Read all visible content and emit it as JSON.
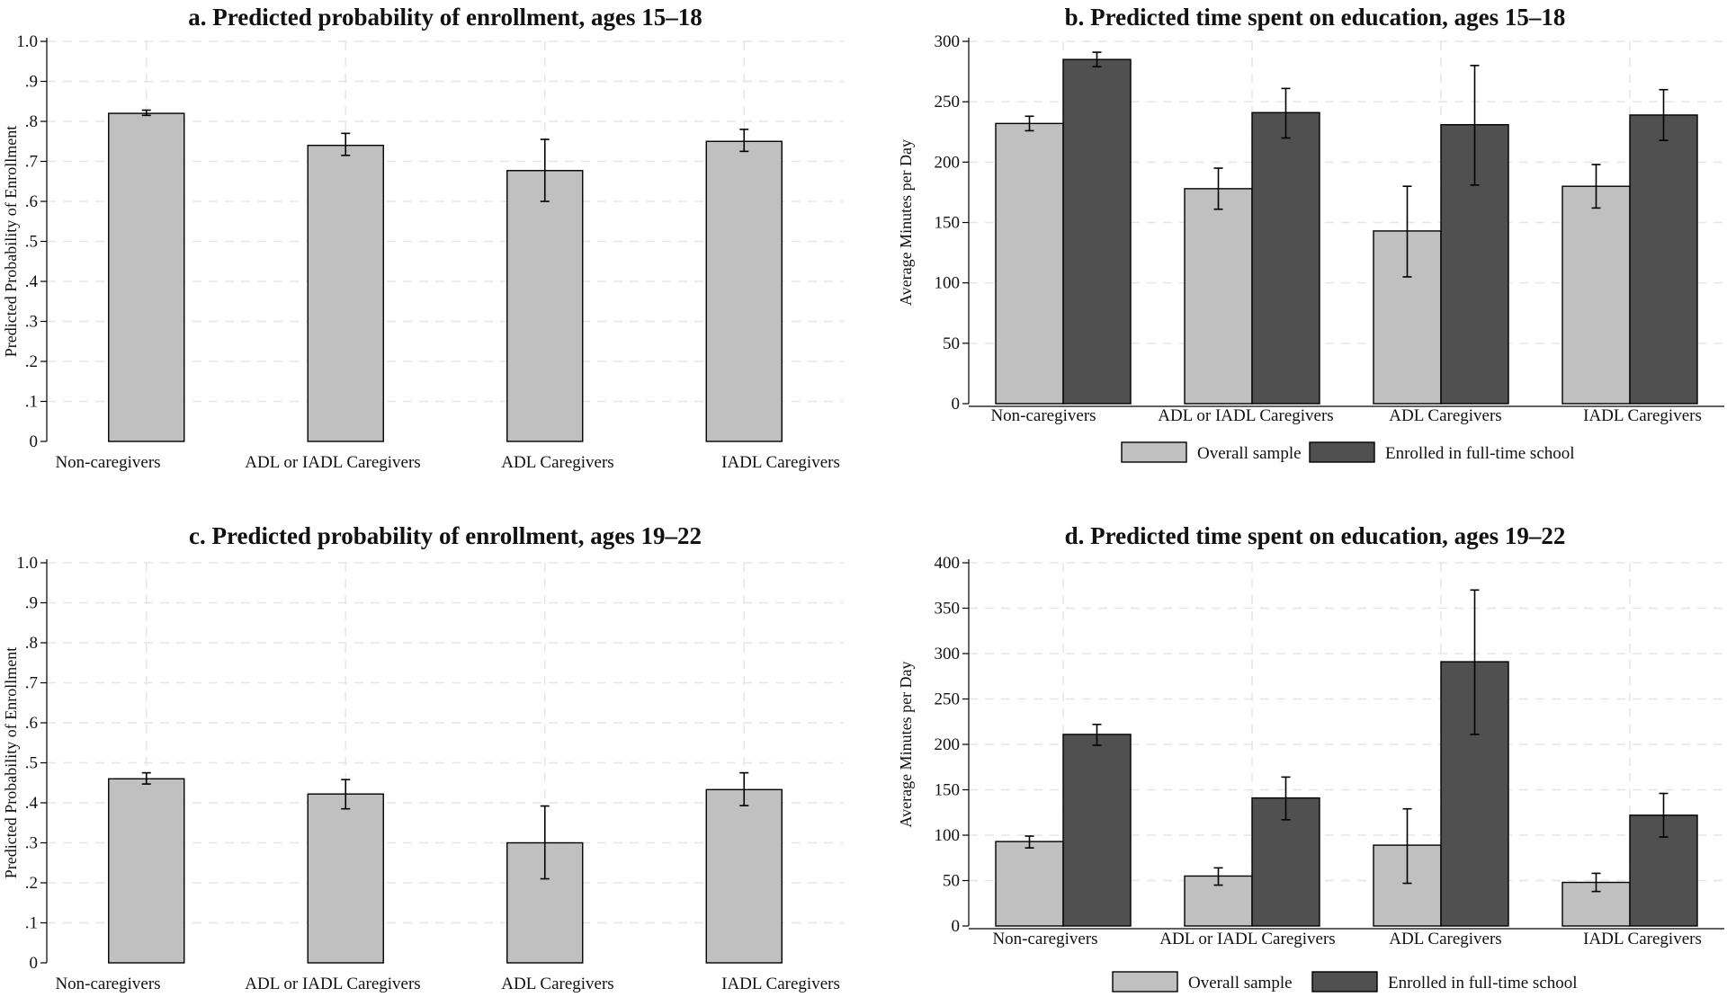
{
  "colors": {
    "light_bar": "#c0c0c0",
    "dark_bar": "#505050",
    "grid": "#e6e6e6",
    "axis": "#000000",
    "error": "#000000"
  },
  "chart_data": [
    {
      "id": "a",
      "type": "bar",
      "title": "a. Predicted probability of enrollment, ages 15–18",
      "ylabel": "Predicted Probability of Enrollment",
      "xlabel": "",
      "ylim": [
        0,
        1.0
      ],
      "ytick_values": [
        0,
        0.1,
        0.2,
        0.3,
        0.4,
        0.5,
        0.6,
        0.7,
        0.8,
        0.9,
        1.0
      ],
      "ytick_labels": [
        "0",
        ".1",
        ".2",
        ".3",
        ".4",
        ".5",
        ".6",
        ".7",
        ".8",
        ".9",
        "1.0"
      ],
      "categories": [
        "Non-caregivers",
        "ADL or IADL Caregivers",
        "ADL Caregivers",
        "IADL Caregivers"
      ],
      "grid": true,
      "legend": null,
      "series": [
        {
          "name": "Predicted probability",
          "color": "#c0c0c0",
          "values": [
            0.82,
            0.74,
            0.677,
            0.75
          ],
          "err_low": [
            0.815,
            0.715,
            0.6,
            0.725
          ],
          "err_high": [
            0.828,
            0.77,
            0.755,
            0.78
          ]
        }
      ]
    },
    {
      "id": "b",
      "type": "bar",
      "title": "b. Predicted time spent on education, ages 15–18",
      "ylabel": "Average Minutes per Day",
      "xlabel": "",
      "ylim": [
        0,
        300
      ],
      "ytick_values": [
        0,
        50,
        100,
        150,
        200,
        250,
        300
      ],
      "ytick_labels": [
        "0",
        "50",
        "100",
        "150",
        "200",
        "250",
        "300"
      ],
      "categories": [
        "Non-caregivers",
        "ADL or IADL Caregivers",
        "ADL Caregivers",
        "IADL Caregivers"
      ],
      "grid": true,
      "legend": "bottom",
      "series": [
        {
          "name": "Overall sample",
          "color": "#c0c0c0",
          "values": [
            232,
            178,
            143,
            180
          ],
          "err_low": [
            226,
            161,
            105,
            162
          ],
          "err_high": [
            238,
            195,
            180,
            198
          ]
        },
        {
          "name": "Enrolled in full-time school",
          "color": "#505050",
          "values": [
            285,
            241,
            231,
            239
          ],
          "err_low": [
            279,
            220,
            181,
            218
          ],
          "err_high": [
            291,
            261,
            280,
            260
          ]
        }
      ]
    },
    {
      "id": "c",
      "type": "bar",
      "title": "c. Predicted probability of enrollment, ages 19–22",
      "ylabel": "Predicted Probability of Enrollment",
      "xlabel": "",
      "ylim": [
        0,
        1.0
      ],
      "ytick_values": [
        0,
        0.1,
        0.2,
        0.3,
        0.4,
        0.5,
        0.6,
        0.7,
        0.8,
        0.9,
        1.0
      ],
      "ytick_labels": [
        "0",
        ".1",
        ".2",
        ".3",
        ".4",
        ".5",
        ".6",
        ".7",
        ".8",
        ".9",
        "1.0"
      ],
      "categories": [
        "Non-caregivers",
        "ADL or IADL Caregivers",
        "ADL Caregivers",
        "IADL Caregivers"
      ],
      "grid": true,
      "legend": null,
      "series": [
        {
          "name": "Predicted probability",
          "color": "#c0c0c0",
          "values": [
            0.46,
            0.422,
            0.3,
            0.433
          ],
          "err_low": [
            0.447,
            0.385,
            0.21,
            0.393
          ],
          "err_high": [
            0.475,
            0.458,
            0.392,
            0.475
          ]
        }
      ]
    },
    {
      "id": "d",
      "type": "bar",
      "title": "d. Predicted time spent on education, ages 19–22",
      "ylabel": "Average Minutes per Day",
      "xlabel": "",
      "ylim": [
        0,
        400
      ],
      "ytick_values": [
        0,
        50,
        100,
        150,
        200,
        250,
        300,
        350,
        400
      ],
      "ytick_labels": [
        "0",
        "50",
        "100",
        "150",
        "200",
        "250",
        "300",
        "350",
        "400"
      ],
      "categories": [
        "Non-caregivers",
        "ADL or IADL Caregivers",
        "ADL Caregivers",
        "IADL Caregivers"
      ],
      "grid": true,
      "legend": "bottom",
      "series": [
        {
          "name": "Overall sample",
          "color": "#c0c0c0",
          "values": [
            93,
            55,
            89,
            48
          ],
          "err_low": [
            86,
            45,
            47,
            38
          ],
          "err_high": [
            99,
            64,
            129,
            58
          ]
        },
        {
          "name": "Enrolled in full-time school",
          "color": "#505050",
          "values": [
            211,
            141,
            291,
            122
          ],
          "err_low": [
            199,
            117,
            211,
            98
          ],
          "err_high": [
            222,
            164,
            370,
            146
          ]
        }
      ]
    }
  ]
}
